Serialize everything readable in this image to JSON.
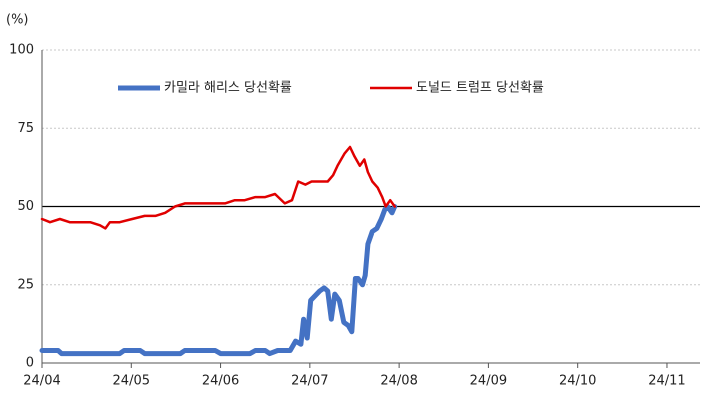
{
  "chart_data": {
    "type": "line",
    "y_label": "(%)",
    "xlim": [
      0,
      7.37
    ],
    "xticks": [
      {
        "value": 0,
        "label": "24/04"
      },
      {
        "value": 1,
        "label": "24/05"
      },
      {
        "value": 2,
        "label": "24/06"
      },
      {
        "value": 3,
        "label": "24/07"
      },
      {
        "value": 4,
        "label": "24/08"
      },
      {
        "value": 5,
        "label": "24/09"
      },
      {
        "value": 6,
        "label": "24/10"
      },
      {
        "value": 7,
        "label": "24/11"
      }
    ],
    "ylim": [
      0,
      100
    ],
    "yticks": [
      0,
      25,
      50,
      75,
      100
    ],
    "grid": true,
    "reference_line": 50,
    "legend": "top",
    "series": [
      {
        "name": "카밀라 해리스 당선확률",
        "color": "#4472c4",
        "line_width": 5,
        "x": [
          0,
          0.18,
          0.22,
          0.87,
          0.92,
          1.1,
          1.15,
          1.55,
          1.6,
          1.94,
          2.0,
          2.33,
          2.39,
          2.5,
          2.55,
          2.64,
          2.78,
          2.84,
          2.9,
          2.93,
          2.97,
          3.01,
          3.11,
          3.16,
          3.2,
          3.24,
          3.28,
          3.33,
          3.38,
          3.43,
          3.47,
          3.51,
          3.54,
          3.59,
          3.62,
          3.65,
          3.7,
          3.75,
          3.8,
          3.84,
          3.87,
          3.92,
          3.95
        ],
        "values": [
          4,
          4,
          3,
          3,
          4,
          4,
          3,
          3,
          4,
          4,
          3,
          3,
          4,
          4,
          3,
          4,
          4,
          7,
          6,
          14,
          8,
          20,
          23,
          24,
          23,
          14,
          22,
          20,
          13,
          12,
          10,
          27,
          27,
          25,
          28,
          38,
          42,
          43,
          46,
          49,
          50,
          48,
          50
        ]
      },
      {
        "name": "도널드 트럼프 당선확률",
        "color": "#e00000",
        "line_width": 2.5,
        "x": [
          0,
          0.09,
          0.2,
          0.31,
          0.43,
          0.54,
          0.65,
          0.71,
          0.76,
          0.87,
          1.01,
          1.15,
          1.27,
          1.38,
          1.49,
          1.6,
          1.71,
          1.83,
          1.94,
          2.05,
          2.16,
          2.27,
          2.39,
          2.5,
          2.61,
          2.72,
          2.8,
          2.87,
          2.95,
          3.02,
          3.11,
          3.2,
          3.26,
          3.31,
          3.39,
          3.45,
          3.5,
          3.56,
          3.61,
          3.65,
          3.7,
          3.76,
          3.81,
          3.85,
          3.9,
          3.95
        ],
        "values": [
          46,
          45,
          46,
          45,
          45,
          45,
          44,
          43,
          45,
          45,
          46,
          47,
          47,
          48,
          50,
          51,
          51,
          51,
          51,
          51,
          52,
          52,
          53,
          53,
          54,
          51,
          52,
          58,
          57,
          58,
          58,
          58,
          60,
          63,
          67,
          69,
          66,
          63,
          65,
          61,
          58,
          56,
          53,
          50,
          52,
          50
        ]
      }
    ]
  }
}
